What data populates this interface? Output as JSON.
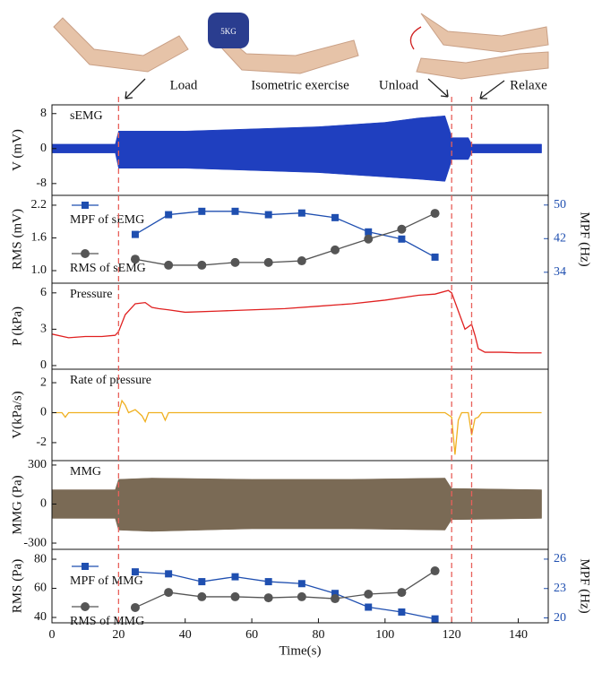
{
  "annotations": {
    "load": "Load",
    "isometric": "Isometric exercise",
    "unload": "Unload",
    "relaxe": "Relaxe",
    "dumbbell": "5KG"
  },
  "vlines": [
    20,
    120,
    126
  ],
  "vline_color": "#e8605a",
  "chart_data": [
    {
      "type": "band",
      "title": "sEMG",
      "ylabel": "V (mV)",
      "color": "#1f3fbf",
      "x": [
        0,
        19,
        20,
        25,
        40,
        60,
        80,
        90,
        100,
        110,
        118,
        119.5,
        120,
        125,
        126,
        140,
        147
      ],
      "upper": [
        1.0,
        1.0,
        4,
        4,
        4,
        4.5,
        5,
        5.5,
        6,
        7,
        7.5,
        4,
        2.5,
        2.5,
        1,
        1,
        1
      ],
      "lower": [
        -1,
        -1,
        -4.5,
        -4.5,
        -4.5,
        -5,
        -5.5,
        -6,
        -6.5,
        -7,
        -7.5,
        -4,
        -2.5,
        -2.5,
        -1,
        -1,
        -1
      ],
      "xlim": [
        0,
        149
      ],
      "ylim": [
        -10.7,
        10
      ],
      "yticks": [
        8,
        0,
        -8
      ]
    },
    {
      "type": "line",
      "ylabel": "RMS (mV)",
      "y2label": "MPF (Hz)",
      "x": [
        25,
        35,
        45,
        55,
        65,
        75,
        85,
        95,
        105,
        115
      ],
      "series": [
        {
          "name": "MPF of sEMG",
          "color": "#1f4fb0",
          "marker": "square",
          "axis": "y2",
          "values": [
            43.0,
            47.7,
            48.5,
            48.5,
            47.7,
            48.1,
            47.0,
            43.6,
            41.9,
            37.6
          ]
        },
        {
          "name": "RMS of sEMG",
          "color": "#555555",
          "marker": "circle",
          "values": [
            1.21,
            1.1,
            1.1,
            1.15,
            1.15,
            1.18,
            1.38,
            1.58,
            1.76,
            2.05
          ]
        }
      ],
      "xlim": [
        0,
        149
      ],
      "ylim": [
        0.77,
        2.38
      ],
      "yticks": [
        2.2,
        1.6,
        {
          "value": 1.0,
          "label": "1.0"
        }
      ],
      "y2lim": [
        31.4,
        52.3
      ],
      "y2ticks": [
        50,
        42,
        34
      ]
    },
    {
      "type": "line",
      "title": "Pressure",
      "ylabel": "P (kPa)",
      "color": "#e02020",
      "x": [
        0,
        5,
        10,
        15,
        19,
        20,
        22,
        25,
        28,
        30,
        32,
        35,
        40,
        50,
        60,
        70,
        80,
        90,
        100,
        110,
        115,
        119,
        120,
        122,
        124,
        126,
        127,
        128,
        130,
        135,
        140,
        147
      ],
      "values": [
        2.6,
        2.3,
        2.4,
        2.4,
        2.5,
        2.8,
        4.2,
        5.1,
        5.2,
        4.8,
        4.7,
        4.6,
        4.4,
        4.5,
        4.6,
        4.7,
        4.9,
        5.1,
        5.4,
        5.8,
        5.9,
        6.2,
        6.0,
        4.5,
        3.0,
        3.4,
        2.5,
        1.4,
        1.1,
        1.1,
        1.05,
        1.05
      ],
      "xlim": [
        0,
        149
      ],
      "ylim": [
        -0.3,
        6.8
      ],
      "yticks": [
        6,
        3,
        0
      ]
    },
    {
      "type": "line",
      "title": "Rate of pressure",
      "ylabel": "V(kPa/s)",
      "color": "#f0b020",
      "x": [
        0,
        3,
        4,
        5,
        20,
        21,
        22,
        23,
        25,
        27,
        28,
        29,
        33,
        34,
        35,
        118,
        120,
        121,
        122,
        123,
        125,
        126,
        127,
        128,
        129,
        147
      ],
      "values": [
        0,
        0,
        -0.3,
        0,
        0,
        0.8,
        0.5,
        0,
        0.2,
        -0.2,
        -0.6,
        0,
        0,
        -0.5,
        0,
        0,
        -0.3,
        -2.8,
        -0.5,
        0,
        0,
        -1.5,
        -0.4,
        -0.3,
        0,
        0
      ],
      "xlim": [
        0,
        149
      ],
      "ylim": [
        -3.2,
        2.9
      ],
      "yticks": [
        2,
        0,
        -2
      ]
    },
    {
      "type": "band",
      "title": "MMG",
      "ylabel": "MMG (Pa)",
      "color": "#7a6a55",
      "x": [
        0,
        19,
        20,
        30,
        60,
        90,
        118,
        120,
        147
      ],
      "upper": [
        110,
        110,
        190,
        200,
        190,
        190,
        200,
        120,
        110
      ],
      "lower": [
        -110,
        -110,
        -200,
        -210,
        -190,
        -190,
        -200,
        -120,
        -110
      ],
      "xlim": [
        0,
        149
      ],
      "ylim": [
        -348,
        334
      ],
      "yticks": [
        300,
        0,
        -300
      ]
    },
    {
      "type": "line",
      "ylabel": "RMS (Pa)",
      "y2label": "MPF (Hz)",
      "xlabel": "Time(s)",
      "x": [
        25,
        35,
        45,
        55,
        65,
        75,
        85,
        95,
        105,
        115
      ],
      "series": [
        {
          "name": "MPF of MMG",
          "color": "#1f4fb0",
          "marker": "square",
          "axis": "y2",
          "values": [
            24.7,
            24.5,
            23.7,
            24.2,
            23.7,
            23.5,
            22.5,
            21.1,
            20.6,
            19.9
          ]
        },
        {
          "name": "RMS of MMG",
          "color": "#555555",
          "marker": "circle",
          "values": [
            46.8,
            57.2,
            54.2,
            54.2,
            53.5,
            54.2,
            52.9,
            56.0,
            57.2,
            72.0
          ]
        }
      ],
      "xlim": [
        0,
        149
      ],
      "xticks": [
        0,
        20,
        40,
        60,
        80,
        100,
        120,
        140
      ],
      "ylim": [
        36.3,
        86.8
      ],
      "yticks": [
        80,
        60,
        40
      ],
      "y2lim": [
        19.5,
        27
      ],
      "y2ticks": [
        26,
        23,
        20
      ]
    }
  ]
}
